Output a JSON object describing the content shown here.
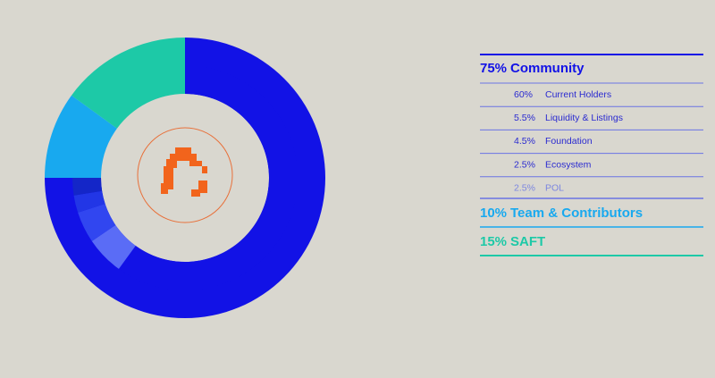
{
  "chart_data": {
    "type": "donut",
    "categories": [
      "Community",
      "Team & Contributors",
      "SAFT"
    ],
    "values": [
      75,
      10,
      15
    ],
    "value_labels": [
      "75%",
      "10%",
      "15%"
    ],
    "colors": [
      "#1212e6",
      "#18a9ef",
      "#1dc9a7"
    ],
    "subcategories": [
      "Current Holders",
      "Liquidity & Listings",
      "Foundation",
      "Ecosystem",
      "POL"
    ],
    "sub_values": [
      60,
      5.5,
      4.5,
      2.5,
      2.5
    ],
    "sub_value_labels": [
      "60%",
      "5.5%",
      "4.5%",
      "2.5%",
      "2.5%"
    ],
    "sub_colors": [
      "#1212e6",
      "#5a6cf6",
      "#3146f0",
      "#2236e6",
      "#1426c8"
    ]
  }
}
